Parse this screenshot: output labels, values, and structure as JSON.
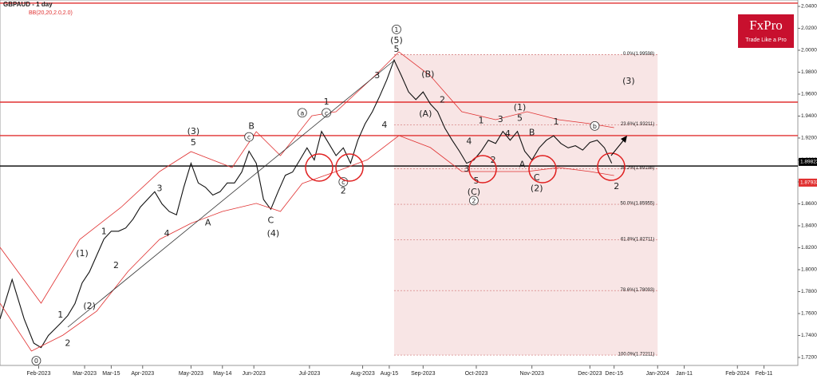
{
  "chart_data": {
    "type": "line",
    "title": "GBPAUD - 1 day",
    "subtitle": "BB(20,20,2.0,2.0)",
    "logo": "FxPro",
    "logo_tagline": "Trade Like a Pro",
    "xlim": [
      0,
      330
    ],
    "ylim": [
      1.7127,
      2.0458
    ],
    "xticks": [
      {
        "value": 16,
        "label": "Feb-2023"
      },
      {
        "value": 35,
        "label": "Mar-2023"
      },
      {
        "value": 46,
        "label": "Mar-15"
      },
      {
        "value": 59,
        "label": "Apr-2023"
      },
      {
        "value": 79,
        "label": "May-2023"
      },
      {
        "value": 92,
        "label": "May-14"
      },
      {
        "value": 105,
        "label": "Jun-2023"
      },
      {
        "value": 128,
        "label": "Jul-2023"
      },
      {
        "value": 150,
        "label": "Aug-2023"
      },
      {
        "value": 161,
        "label": "Aug-15"
      },
      {
        "value": 175,
        "label": "Sep-2023"
      },
      {
        "value": 197,
        "label": "Oct-2023"
      },
      {
        "value": 220,
        "label": "Nov-2023"
      },
      {
        "value": 244,
        "label": "Dec-2023"
      },
      {
        "value": 254,
        "label": "Dec-15"
      },
      {
        "value": 272,
        "label": "Jan-2024"
      },
      {
        "value": 283,
        "label": "Jan-11"
      },
      {
        "value": 305,
        "label": "Feb-2024"
      },
      {
        "value": 316,
        "label": "Feb-11"
      }
    ],
    "yticks": [
      {
        "value": 2.04,
        "label": "2.04000"
      },
      {
        "value": 2.02,
        "label": "2.02000"
      },
      {
        "value": 2.0,
        "label": "2.00000"
      },
      {
        "value": 1.98,
        "label": "1.98000"
      },
      {
        "value": 1.96,
        "label": "1.96000"
      },
      {
        "value": 1.94,
        "label": "1.94000"
      },
      {
        "value": 1.92,
        "label": "1.92000"
      },
      {
        "value": 1.9,
        "label": "1.90000"
      },
      {
        "value": 1.88,
        "label": "1.88000"
      },
      {
        "value": 1.86,
        "label": "1.86000"
      },
      {
        "value": 1.84,
        "label": "1.84000"
      },
      {
        "value": 1.82,
        "label": "1.82000"
      },
      {
        "value": 1.8,
        "label": "1.80000"
      },
      {
        "value": 1.78,
        "label": "1.78000"
      },
      {
        "value": 1.76,
        "label": "1.76000"
      },
      {
        "value": 1.74,
        "label": "1.74000"
      },
      {
        "value": 1.72,
        "label": "1.72000"
      }
    ],
    "series": [
      {
        "name": "GBPAUD",
        "color": "#111111",
        "x": [
          0,
          5,
          10,
          14,
          17,
          20,
          25,
          28,
          31,
          34,
          37,
          40,
          43,
          46,
          49,
          52,
          55,
          58,
          61,
          64,
          67,
          70,
          73,
          76,
          79,
          82,
          85,
          88,
          91,
          94,
          97,
          100,
          103,
          106,
          109,
          112,
          115,
          118,
          121,
          124,
          127,
          130,
          133,
          136,
          139,
          142,
          145,
          148,
          151,
          154,
          157,
          160,
          163,
          166,
          169,
          172,
          175,
          178,
          181,
          184,
          187,
          190,
          193,
          196,
          199,
          202,
          205,
          208,
          211,
          214,
          217,
          220,
          223,
          226,
          229,
          232,
          235,
          238,
          241,
          244,
          247,
          250,
          253
        ],
        "values": [
          1.755,
          1.791,
          1.755,
          1.733,
          1.729,
          1.74,
          1.751,
          1.758,
          1.769,
          1.788,
          1.798,
          1.813,
          1.828,
          1.835,
          1.835,
          1.838,
          1.846,
          1.857,
          1.864,
          1.871,
          1.86,
          1.853,
          1.85,
          1.875,
          1.897,
          1.879,
          1.875,
          1.868,
          1.871,
          1.879,
          1.879,
          1.889,
          1.908,
          1.897,
          1.864,
          1.855,
          1.871,
          1.886,
          1.889,
          1.9,
          1.911,
          1.9,
          1.926,
          1.915,
          1.904,
          1.911,
          1.897,
          1.918,
          1.933,
          1.944,
          1.958,
          1.973,
          1.991,
          1.977,
          1.962,
          1.955,
          1.962,
          1.951,
          1.944,
          1.929,
          1.918,
          1.908,
          1.897,
          1.9,
          1.908,
          1.918,
          1.915,
          1.926,
          1.918,
          1.926,
          1.908,
          1.9,
          1.911,
          1.918,
          1.922,
          1.915,
          1.911,
          1.913,
          1.909,
          1.916,
          1.918,
          1.911,
          1.897
        ]
      },
      {
        "name": "BB upper",
        "color": "#e03030",
        "x": [
          0,
          17,
          33,
          50,
          66,
          79,
          96,
          106,
          116,
          129,
          139,
          155,
          165,
          178,
          191,
          205,
          218,
          231,
          244,
          254
        ],
        "values": [
          1.8204,
          1.7694,
          1.8276,
          1.8567,
          1.8894,
          1.9076,
          1.8931,
          1.9258,
          1.904,
          1.9403,
          1.944,
          1.9767,
          1.9985,
          1.9767,
          1.944,
          1.9367,
          1.944,
          1.9367,
          1.9331,
          1.9294
        ]
      },
      {
        "name": "BB lower",
        "color": "#e03030",
        "x": [
          0,
          13,
          26,
          40,
          53,
          66,
          79,
          92,
          106,
          116,
          125,
          139,
          152,
          165,
          178,
          191,
          205,
          218,
          231,
          244,
          254
        ],
        "values": [
          1.7694,
          1.7258,
          1.7403,
          1.7622,
          1.7985,
          1.8276,
          1.8422,
          1.8531,
          1.8604,
          1.8531,
          1.8785,
          1.8894,
          1.9003,
          1.9222,
          1.9113,
          1.8894,
          1.8894,
          1.8894,
          1.8931,
          1.8894,
          1.8858
        ]
      }
    ],
    "levels": [
      {
        "value": 2.0429,
        "color": "#e03030"
      },
      {
        "value": 1.9527,
        "color": "#e03030"
      },
      {
        "value": 1.9222,
        "color": "#e03030"
      },
      {
        "value": 1.8945,
        "color": "#000000"
      }
    ],
    "price_labels": [
      {
        "value": 1.89823,
        "label": "1.89823",
        "color": "#000000"
      },
      {
        "value": 1.87933,
        "label": "1.87933",
        "color": "#e03030"
      }
    ],
    "fib_range": [
      163,
      272
    ],
    "fib_levels": [
      {
        "value": 1.99598,
        "label": "0.0%(1.99598)"
      },
      {
        "value": 1.93211,
        "label": "23.6%(1.93211)"
      },
      {
        "value": 1.89198,
        "label": "38.2%(1.89198)"
      },
      {
        "value": 1.85955,
        "label": "50.0%(1.85955)"
      },
      {
        "value": 1.82711,
        "label": "61.8%(1.82711)"
      },
      {
        "value": 1.78093,
        "label": "78.6%(1.78093)"
      },
      {
        "value": 1.72211,
        "label": "100.0%(1.72211)"
      }
    ],
    "annotations": [
      {
        "text": "0",
        "x": 15,
        "y": 1.717,
        "circled": true
      },
      {
        "text": "1",
        "x": 25,
        "y": 1.759
      },
      {
        "text": "2",
        "x": 28,
        "y": 1.733
      },
      {
        "text": "(1)",
        "x": 34,
        "y": 1.815
      },
      {
        "text": "(2)",
        "x": 37,
        "y": 1.767
      },
      {
        "text": "1",
        "x": 43,
        "y": 1.835
      },
      {
        "text": "2",
        "x": 48,
        "y": 1.804
      },
      {
        "text": "3",
        "x": 66,
        "y": 1.874
      },
      {
        "text": "4",
        "x": 69,
        "y": 1.833
      },
      {
        "text": "(3)",
        "x": 80,
        "y": 1.926
      },
      {
        "text": "5",
        "x": 80,
        "y": 1.916
      },
      {
        "text": "A",
        "x": 86,
        "y": 1.843
      },
      {
        "text": "B",
        "x": 104,
        "y": 1.931
      },
      {
        "text": "C",
        "x": 112,
        "y": 1.845
      },
      {
        "text": "(4)",
        "x": 113,
        "y": 1.833
      },
      {
        "text": "1",
        "x": 135,
        "y": 1.953
      },
      {
        "text": "2",
        "x": 142,
        "y": 1.872
      },
      {
        "text": "1",
        "x": 164,
        "y": 2.019,
        "circled": true
      },
      {
        "text": "(5)",
        "x": 164,
        "y": 2.009
      },
      {
        "text": "5",
        "x": 164,
        "y": 2.001
      },
      {
        "text": "3",
        "x": 156,
        "y": 1.977
      },
      {
        "text": "4",
        "x": 159,
        "y": 1.932
      },
      {
        "text": "(B)",
        "x": 177,
        "y": 1.978
      },
      {
        "text": "(A)",
        "x": 176,
        "y": 1.942
      },
      {
        "text": "2",
        "x": 183,
        "y": 1.955
      },
      {
        "text": "3",
        "x": 193,
        "y": 1.892
      },
      {
        "text": "4",
        "x": 194,
        "y": 1.917
      },
      {
        "text": "5",
        "x": 197,
        "y": 1.881
      },
      {
        "text": "(C)",
        "x": 196,
        "y": 1.871
      },
      {
        "text": "2",
        "x": 196,
        "y": 1.863,
        "circled": true
      },
      {
        "text": "1",
        "x": 199,
        "y": 1.936
      },
      {
        "text": "2",
        "x": 204,
        "y": 1.9
      },
      {
        "text": "3",
        "x": 207,
        "y": 1.937
      },
      {
        "text": "4",
        "x": 210,
        "y": 1.924
      },
      {
        "text": "(1)",
        "x": 215,
        "y": 1.948
      },
      {
        "text": "5",
        "x": 215,
        "y": 1.938
      },
      {
        "text": "A",
        "x": 216,
        "y": 1.896
      },
      {
        "text": "B",
        "x": 220,
        "y": 1.925
      },
      {
        "text": "C",
        "x": 222,
        "y": 1.884
      },
      {
        "text": "(2)",
        "x": 222,
        "y": 1.874
      },
      {
        "text": "1",
        "x": 230,
        "y": 1.935
      },
      {
        "text": "2",
        "x": 255,
        "y": 1.876
      },
      {
        "text": "(3)",
        "x": 260,
        "y": 1.972
      },
      {
        "text": "c",
        "x": 103,
        "y": 1.921,
        "circled": true
      },
      {
        "text": "a",
        "x": 125,
        "y": 1.943,
        "circled": true
      },
      {
        "text": "c",
        "x": 135,
        "y": 1.943,
        "circled": true
      },
      {
        "text": "c",
        "x": 142,
        "y": 1.88,
        "circled": true
      },
      {
        "text": "b",
        "x": 246,
        "y": 1.931,
        "circled": true
      }
    ]
  }
}
